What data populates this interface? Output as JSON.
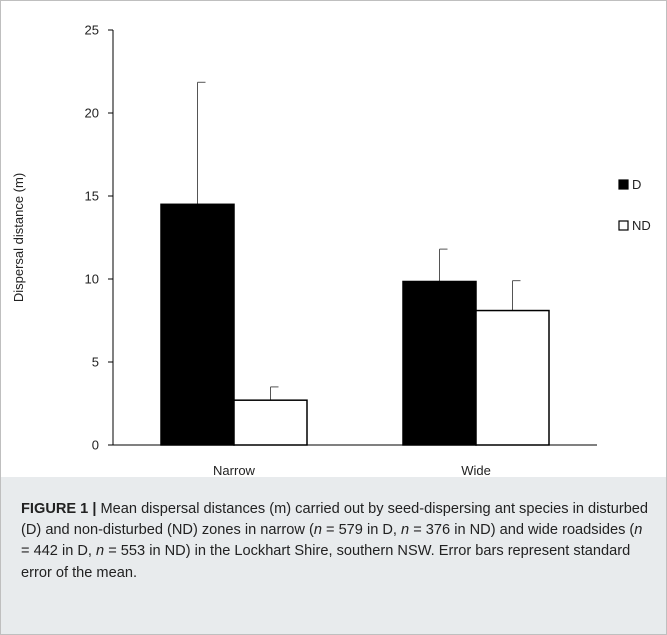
{
  "chart_data": {
    "type": "bar",
    "title": "",
    "xlabel": "",
    "ylabel": "Dispersal distance (m)",
    "ylim": [
      0,
      25
    ],
    "yticks": [
      0,
      5,
      10,
      15,
      20,
      25
    ],
    "categories": [
      "Narrow",
      "Wide"
    ],
    "series": [
      {
        "name": "D",
        "values": [
          14.5,
          9.85
        ],
        "errors": [
          7.35,
          1.95
        ],
        "fill": "#000000"
      },
      {
        "name": "ND",
        "values": [
          2.7,
          8.1
        ],
        "errors": [
          0.8,
          1.8
        ],
        "fill": "#ffffff"
      }
    ],
    "legend_position": "right",
    "grid": false,
    "error_bars": "standard error"
  },
  "caption": {
    "label": "FIGURE 1 |",
    "parts": [
      " Mean dispersal distances (m) carried out by seed-dispersing ant species in disturbed (D) and non-disturbed (ND) zones in narrow (",
      "n",
      " = 579 in D, ",
      "n",
      " = 376 in ND) and wide roadsides (",
      "n",
      " = 442 in D, ",
      "n",
      " = 553 in ND) in the Lockhart Shire, southern NSW. Error bars represent standard error of the mean."
    ]
  }
}
